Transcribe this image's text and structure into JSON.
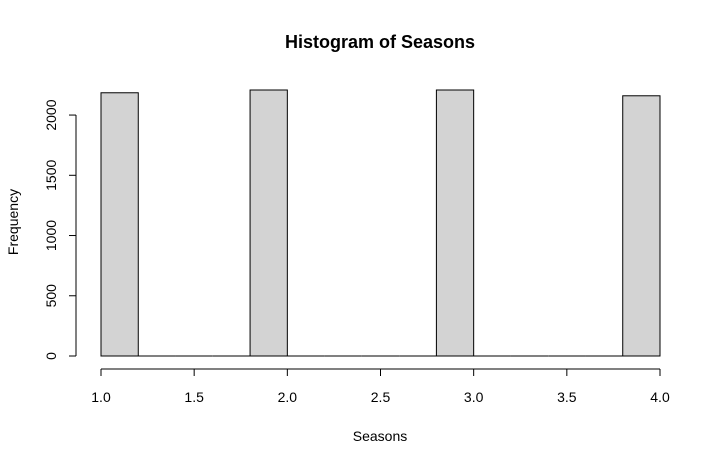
{
  "chart_data": {
    "type": "bar",
    "title": "Histogram of Seasons",
    "xlabel": "Seasons",
    "ylabel": "Frequency",
    "bins": [
      {
        "start": 1.0,
        "end": 1.2,
        "count": 2185
      },
      {
        "start": 1.2,
        "end": 1.4,
        "count": 0
      },
      {
        "start": 1.4,
        "end": 1.6,
        "count": 0
      },
      {
        "start": 1.6,
        "end": 1.8,
        "count": 0
      },
      {
        "start": 1.8,
        "end": 2.0,
        "count": 2208
      },
      {
        "start": 2.0,
        "end": 2.2,
        "count": 0
      },
      {
        "start": 2.2,
        "end": 2.4,
        "count": 0
      },
      {
        "start": 2.4,
        "end": 2.6,
        "count": 0
      },
      {
        "start": 2.6,
        "end": 2.8,
        "count": 0
      },
      {
        "start": 2.8,
        "end": 3.0,
        "count": 2208
      },
      {
        "start": 3.0,
        "end": 3.2,
        "count": 0
      },
      {
        "start": 3.2,
        "end": 3.4,
        "count": 0
      },
      {
        "start": 3.4,
        "end": 3.6,
        "count": 0
      },
      {
        "start": 3.6,
        "end": 3.8,
        "count": 0
      },
      {
        "start": 3.8,
        "end": 4.0,
        "count": 2160
      }
    ],
    "xticks": [
      1.0,
      1.5,
      2.0,
      2.5,
      3.0,
      3.5,
      4.0
    ],
    "xtick_labels": [
      "1.0",
      "1.5",
      "2.0",
      "2.5",
      "3.0",
      "3.5",
      "4.0"
    ],
    "yticks": [
      0,
      500,
      1000,
      1500,
      2000
    ],
    "ytick_labels": [
      "0",
      "500",
      "1000",
      "1500",
      "2000"
    ],
    "xlim": [
      1.0,
      4.0
    ],
    "ylim": [
      0,
      2208
    ],
    "bar_fill": "#d3d3d3",
    "bar_stroke": "#000000",
    "grid": false
  }
}
